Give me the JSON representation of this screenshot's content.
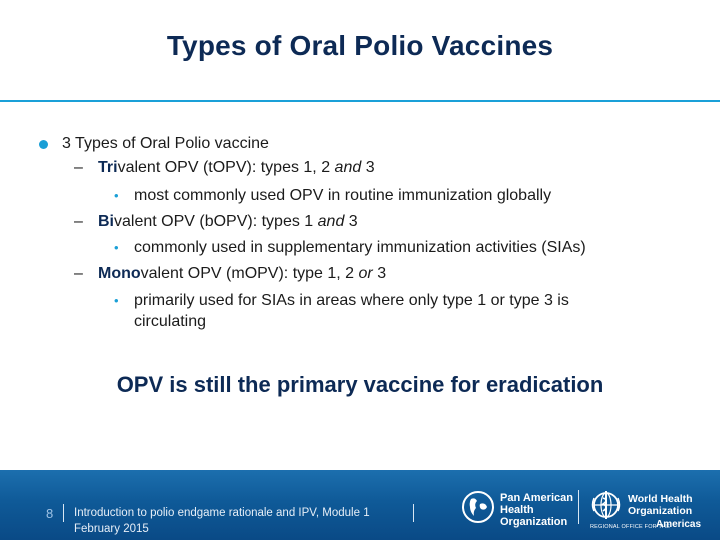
{
  "slide": {
    "title": "Types of Oral Polio Vaccines",
    "bullet": "3 Types of Oral Polio vaccine",
    "items": [
      {
        "prefix": "Tri",
        "text": "valent OPV (tOPV): types 1, 2 ",
        "em": "and",
        "tail": " 3",
        "detail": "most commonly used OPV in routine immunization globally"
      },
      {
        "prefix": "Bi",
        "text": "valent OPV (bOPV): types 1 ",
        "em": "and",
        "tail": " 3",
        "detail": "commonly used in supplementary immunization activities (SIAs)"
      },
      {
        "prefix": "Mono",
        "text": "valent OPV (mOPV): type 1, 2 ",
        "em": "or",
        "tail": " 3",
        "detail_line1": "primarily used for SIAs in areas where only type 1 or type 3 is",
        "detail_line2": "circulating"
      }
    ],
    "callout": "OPV is still the primary vaccine for eradication"
  },
  "footer": {
    "page_number": "8",
    "course_line1": "Introduction to polio endgame rationale and IPV, Module 1",
    "course_line2": "February 2015",
    "paho": {
      "line1": "Pan American",
      "line2": "Health",
      "line3": "Organization"
    },
    "who": {
      "line1": "World Health",
      "line2": "Organization",
      "sub": "REGIONAL OFFICE FOR THE",
      "region": "Americas"
    }
  },
  "colors": {
    "title": "#0d2a55",
    "accent": "#1aa0d8",
    "footer_bg": "#0f5a98"
  }
}
